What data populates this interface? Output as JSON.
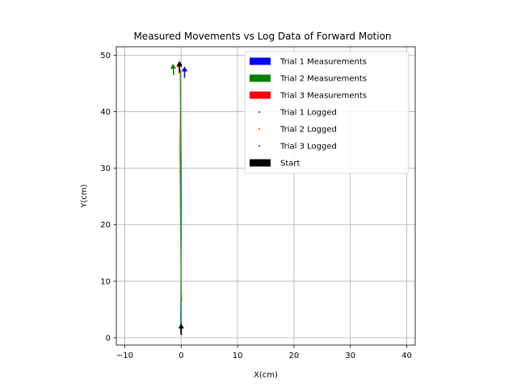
{
  "chart_data": {
    "type": "scatter",
    "title": "Measured Movements vs Log Data of Forward Motion",
    "xlabel": "X(cm)",
    "ylabel": "Y(cm)",
    "xlim": [
      -11.5,
      41.5
    ],
    "ylim": [
      -1.3,
      51.5
    ],
    "xticks": [
      -10,
      0,
      10,
      20,
      30,
      40
    ],
    "yticks": [
      0,
      10,
      20,
      30,
      40,
      50
    ],
    "grid": true,
    "legend_position": "top-right",
    "series": [
      {
        "name": "Trial 1 Measurements",
        "kind": "arrow",
        "color": "#0000ff",
        "x": 0.6,
        "y": 46.0,
        "angle_deg": 90
      },
      {
        "name": "Trial 2 Measurements",
        "kind": "arrow",
        "color": "#008000",
        "x": -1.3,
        "y": 46.5,
        "angle_deg": 95
      },
      {
        "name": "Trial 3 Measurements",
        "kind": "arrow",
        "color": "#ff0000",
        "x": -0.3,
        "y": 46.8,
        "angle_deg": 92
      },
      {
        "name": "Trial 1 Logged",
        "kind": "line",
        "color": "#1f77b4",
        "x": [
          -0.1,
          -0.05,
          0.0,
          0.05,
          0.0,
          -0.1,
          -0.15
        ],
        "y": [
          1.0,
          8.0,
          16.0,
          24.0,
          32.0,
          40.0,
          47.5
        ]
      },
      {
        "name": "Trial 2 Logged",
        "kind": "line",
        "color": "#ff7f0e",
        "x": [
          0.1,
          0.0,
          -0.2,
          -0.25,
          -0.15,
          -0.05,
          -0.1
        ],
        "y": [
          6.5,
          9.5,
          28.5,
          34.0,
          40.0,
          45.0,
          47.5
        ]
      },
      {
        "name": "Trial 3 Logged",
        "kind": "line",
        "color": "#2ca02c",
        "x": [
          0.05,
          0.0,
          -0.05,
          -0.1,
          -0.1,
          -0.1,
          -0.15
        ],
        "y": [
          0.5,
          8.0,
          16.0,
          24.0,
          32.0,
          40.0,
          47.5
        ]
      },
      {
        "name": "Start",
        "kind": "arrow",
        "color": "#000000",
        "points": [
          {
            "x": 0.0,
            "y": 0.5,
            "angle_deg": 90
          },
          {
            "x": -0.3,
            "y": 47.0,
            "angle_deg": 90
          }
        ]
      }
    ]
  }
}
